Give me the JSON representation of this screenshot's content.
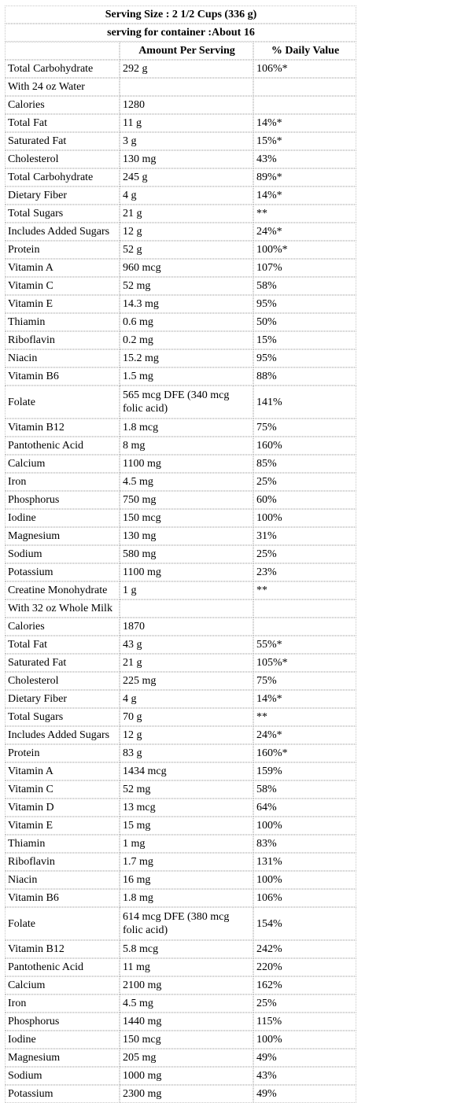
{
  "header": {
    "serving_size": "Serving Size : 2 1/2 Cups (336 g)",
    "servings_per_container": "serving for container :About 16",
    "col_amount": "Amount Per Serving",
    "col_daily_value": "% Daily Value"
  },
  "rows": [
    {
      "n": "Total Carbohydrate",
      "a": "292 g",
      "d": "106%*"
    },
    {
      "n": "With 24 oz Water",
      "a": "",
      "d": "",
      "section": true
    },
    {
      "n": "Calories",
      "a": "1280",
      "d": ""
    },
    {
      "n": "Total Fat",
      "a": "11 g",
      "d": "14%*"
    },
    {
      "n": "Saturated Fat",
      "a": "3 g",
      "d": "15%*"
    },
    {
      "n": "Cholesterol",
      "a": "130 mg",
      "d": "43%"
    },
    {
      "n": "Total Carbohydrate",
      "a": "245 g",
      "d": "89%*"
    },
    {
      "n": "Dietary Fiber",
      "a": "4 g",
      "d": "14%*"
    },
    {
      "n": "Total Sugars",
      "a": "21 g",
      "d": "**"
    },
    {
      "n": "Includes Added Sugars",
      "a": "12 g",
      "d": "24%*"
    },
    {
      "n": "Protein",
      "a": "52 g",
      "d": "100%*"
    },
    {
      "n": "Vitamin A",
      "a": "960 mcg",
      "d": "107%"
    },
    {
      "n": "Vitamin C",
      "a": "52 mg",
      "d": "58%"
    },
    {
      "n": "Vitamin E",
      "a": "14.3 mg",
      "d": "95%"
    },
    {
      "n": "Thiamin",
      "a": "0.6 mg",
      "d": "50%"
    },
    {
      "n": "Riboflavin",
      "a": "0.2 mg",
      "d": "15%"
    },
    {
      "n": "Niacin",
      "a": "15.2 mg",
      "d": "95%"
    },
    {
      "n": "Vitamin B6",
      "a": "1.5 mg",
      "d": "88%"
    },
    {
      "n": "Folate",
      "a": "565 mcg DFE (340 mcg folic acid)",
      "d": "141%",
      "wrap": true
    },
    {
      "n": "Vitamin B12",
      "a": "1.8 mcg",
      "d": "75%"
    },
    {
      "n": "Pantothenic Acid",
      "a": "8 mg",
      "d": "160%"
    },
    {
      "n": "Calcium",
      "a": "1100 mg",
      "d": "85%"
    },
    {
      "n": "Iron",
      "a": "4.5 mg",
      "d": "25%"
    },
    {
      "n": "Phosphorus",
      "a": "750 mg",
      "d": "60%"
    },
    {
      "n": "Iodine",
      "a": "150 mcg",
      "d": "100%"
    },
    {
      "n": "Magnesium",
      "a": "130 mg",
      "d": "31%"
    },
    {
      "n": "Sodium",
      "a": "580 mg",
      "d": "25%"
    },
    {
      "n": "Potassium",
      "a": "1100 mg",
      "d": "23%"
    },
    {
      "n": "Creatine Monohydrate",
      "a": "1 g",
      "d": "**"
    },
    {
      "n": "With 32 oz Whole Milk",
      "a": "",
      "d": "",
      "section": true
    },
    {
      "n": "Calories",
      "a": "1870",
      "d": ""
    },
    {
      "n": "Total Fat",
      "a": "43 g",
      "d": "55%*"
    },
    {
      "n": "Saturated Fat",
      "a": "21 g",
      "d": "105%*"
    },
    {
      "n": "Cholesterol",
      "a": "225 mg",
      "d": "75%"
    },
    {
      "n": "Dietary Fiber",
      "a": "4 g",
      "d": "14%*"
    },
    {
      "n": "Total Sugars",
      "a": "70 g",
      "d": "**"
    },
    {
      "n": "Includes Added Sugars",
      "a": "12 g",
      "d": "24%*"
    },
    {
      "n": "Protein",
      "a": "83 g",
      "d": "160%*"
    },
    {
      "n": "Vitamin A",
      "a": "1434 mcg",
      "d": "159%"
    },
    {
      "n": "Vitamin C",
      "a": "52 mg",
      "d": "58%"
    },
    {
      "n": "Vitamin D",
      "a": "13 mcg",
      "d": "64%"
    },
    {
      "n": "Vitamin E",
      "a": "15 mg",
      "d": "100%"
    },
    {
      "n": "Thiamin",
      "a": "1 mg",
      "d": "83%"
    },
    {
      "n": "Riboflavin",
      "a": "1.7 mg",
      "d": "131%"
    },
    {
      "n": "Niacin",
      "a": "16 mg",
      "d": "100%"
    },
    {
      "n": "Vitamin B6",
      "a": "1.8 mg",
      "d": "106%"
    },
    {
      "n": "Folate",
      "a": "614 mcg DFE (380 mcg folic acid)",
      "d": "154%",
      "wrap": true
    },
    {
      "n": "Vitamin B12",
      "a": "5.8 mcg",
      "d": "242%"
    },
    {
      "n": "Pantothenic Acid",
      "a": "11 mg",
      "d": "220%"
    },
    {
      "n": "Calcium",
      "a": "2100 mg",
      "d": "162%"
    },
    {
      "n": "Iron",
      "a": "4.5 mg",
      "d": "25%"
    },
    {
      "n": "Phosphorus",
      "a": "1440 mg",
      "d": "115%"
    },
    {
      "n": "Iodine",
      "a": "150 mcg",
      "d": "100%"
    },
    {
      "n": "Magnesium",
      "a": "205 mg",
      "d": "49%"
    },
    {
      "n": "Sodium",
      "a": "1000 mg",
      "d": "43%"
    },
    {
      "n": "Potassium",
      "a": "2300 mg",
      "d": "49%"
    }
  ]
}
